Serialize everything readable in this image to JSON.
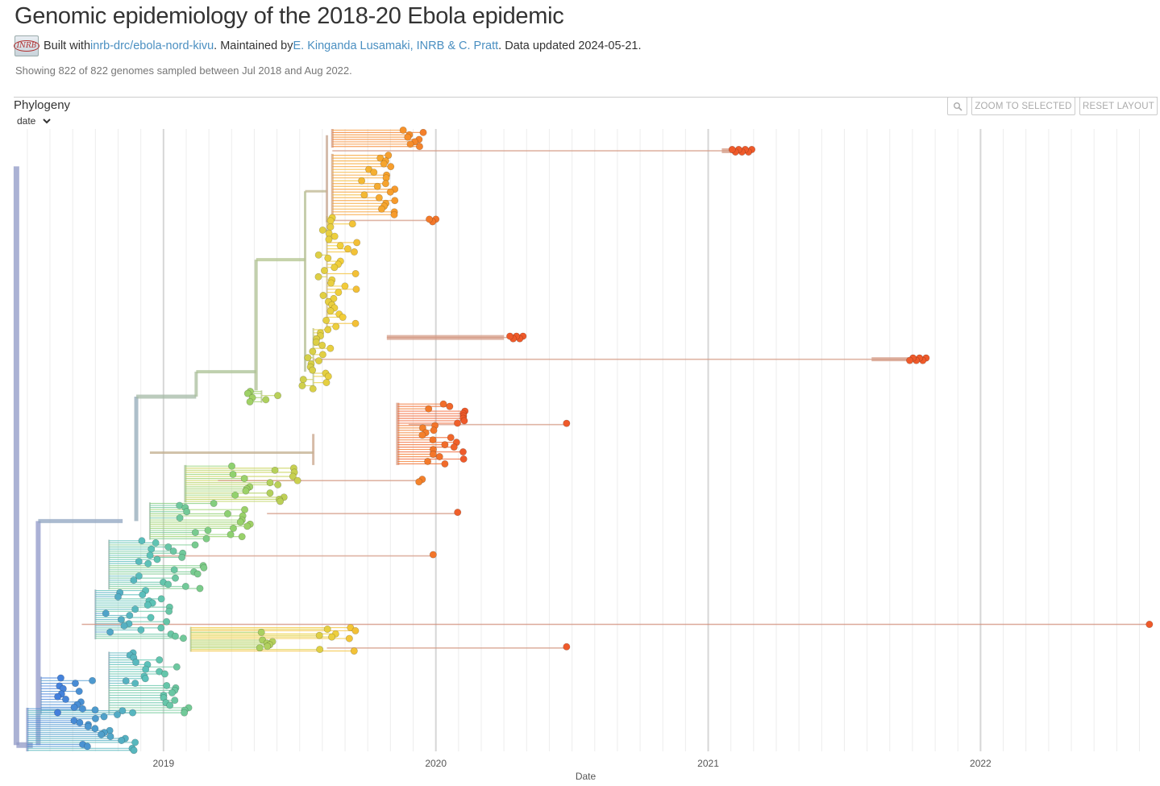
{
  "header": {
    "title": "Genomic epidemiology of the 2018-20 Ebola epidemic",
    "logo_text": "INRB",
    "built_with_prefix": "Built with ",
    "built_with_link": "inrb-drc/ebola-nord-kivu",
    "maintained_prefix": ". Maintained by ",
    "maintainers_link": "E. Kinganda Lusamaki, INRB & C. Pratt",
    "data_updated": ". Data updated 2024-05-21.",
    "summary": "Showing 822 of 822 genomes sampled between Jul 2018 and Aug 2022."
  },
  "panel": {
    "title": "Phylogeny",
    "branch_length_select": "date",
    "zoom_in_icon": "magnifier-icon",
    "zoom_to_selected": "ZOOM TO SELECTED",
    "reset_layout": "RESET LAYOUT"
  },
  "axis": {
    "label": "Date",
    "x_min": 2018.45,
    "x_max": 2022.65,
    "major_ticks": [
      {
        "value": 2019,
        "label": "2019"
      },
      {
        "value": 2020,
        "label": "2020"
      },
      {
        "value": 2021,
        "label": "2021"
      },
      {
        "value": 2022,
        "label": "2022"
      }
    ],
    "minor_tick_step": 0.0833333
  },
  "colors": {
    "early": "#3f73e3",
    "teal": "#5cc3b8",
    "green": "#8fd16f",
    "yellow": "#f2cf3a",
    "orange": "#f79a2b",
    "late": "#ef5a2a"
  },
  "chart_data": {
    "type": "scatter",
    "title": "",
    "xlabel": "Date",
    "ylabel": "",
    "xlim": [
      2018.45,
      2022.65
    ],
    "grid": true,
    "series": [
      {
        "kind": "notable-tips",
        "points": [
          {
            "x": 2020.0,
            "y": 0.01
          },
          {
            "x": 2021.16,
            "y": 0.045
          },
          {
            "x": 2020.0,
            "y": 0.147
          },
          {
            "x": 2020.32,
            "y": 0.335
          },
          {
            "x": 2021.8,
            "y": 0.37
          },
          {
            "x": 2020.48,
            "y": 0.475
          },
          {
            "x": 2019.95,
            "y": 0.565
          },
          {
            "x": 2020.08,
            "y": 0.618
          },
          {
            "x": 2019.99,
            "y": 0.686
          },
          {
            "x": 2022.62,
            "y": 0.796
          },
          {
            "x": 2020.48,
            "y": 0.834
          }
        ]
      }
    ]
  }
}
